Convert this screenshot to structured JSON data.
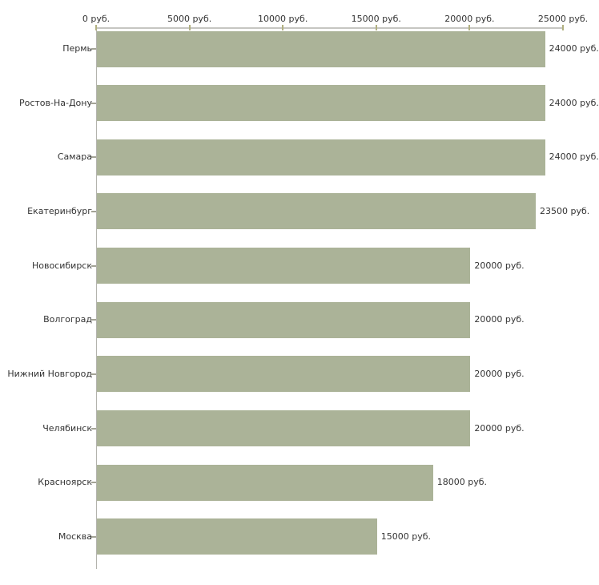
{
  "chart_data": {
    "type": "bar",
    "orientation": "horizontal",
    "title": "",
    "xlabel": "",
    "ylabel": "",
    "categories": [
      "Пермь",
      "Ростов-На-Дону",
      "Самара",
      "Екатеринбург",
      "Новосибирск",
      "Волгоград",
      "Нижний Новгород",
      "Челябинск",
      "Красноярск",
      "Москва"
    ],
    "values": [
      24000,
      24000,
      24000,
      23500,
      20000,
      20000,
      20000,
      20000,
      18000,
      15000
    ],
    "value_labels": [
      "24000 руб.",
      "24000 руб.",
      "24000 руб.",
      "23500 руб.",
      "20000 руб.",
      "20000 руб.",
      "20000 руб.",
      "20000 руб.",
      "18000 руб.",
      "15000 руб."
    ],
    "x_axis": {
      "position": "top",
      "min": 0,
      "max": 25000,
      "ticks": [
        0,
        5000,
        10000,
        15000,
        20000,
        25000
      ],
      "tick_labels": [
        "0 руб.",
        "5000 руб.",
        "10000 руб.",
        "15000 руб.",
        "20000 руб.",
        "25000 руб."
      ]
    },
    "grid": false,
    "legend": false,
    "colors": {
      "bar_fill": "#abb398",
      "axis_line": "#c6c6c2",
      "x_tick_mark": "#b2b181",
      "y_tick_mark": "#a3a396",
      "text": "#333333",
      "background": "#ffffff"
    }
  }
}
